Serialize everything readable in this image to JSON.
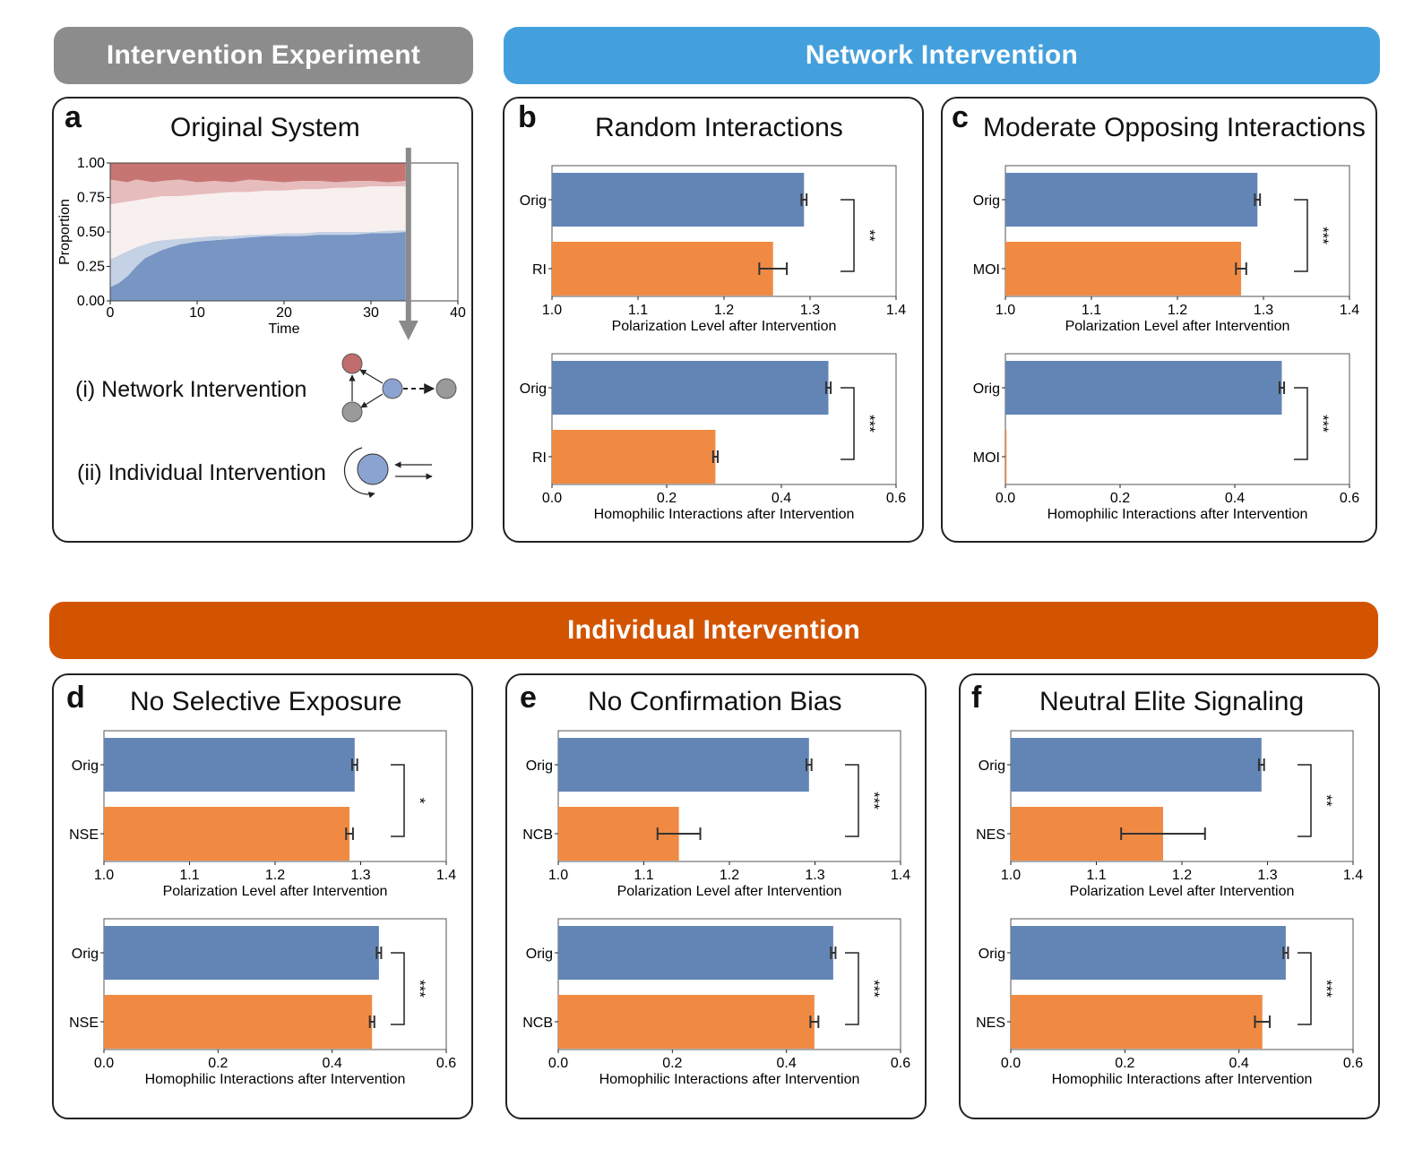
{
  "banners": {
    "experiment": "Intervention Experiment",
    "network": "Network Intervention",
    "individual": "Individual Intervention"
  },
  "colors": {
    "orig_bar": "#6385b5",
    "intervention_bar": "#f08a43",
    "banner_gray": "#8c8c8c",
    "banner_blue": "#44a0dc",
    "banner_orange": "#d35400"
  },
  "panel_a": {
    "label": "a",
    "title": "Original System",
    "network_label": "(i) Network Intervention",
    "individual_label": "(ii) Individual Intervention"
  },
  "panels": {
    "b": {
      "label": "b",
      "title": "Random Interactions"
    },
    "c": {
      "label": "c",
      "title": "Moderate Opposing Interactions"
    },
    "d": {
      "label": "d",
      "title": "No Selective Exposure"
    },
    "e": {
      "label": "e",
      "title": "No Confirmation Bias"
    },
    "f": {
      "label": "f",
      "title": "Neutral Elite Signaling"
    }
  },
  "chart_data": [
    {
      "panel": "a",
      "type": "area",
      "xlabel": "Time",
      "ylabel": "Proportion",
      "xlim": [
        0,
        40
      ],
      "ylim": [
        0,
        1
      ],
      "xticks": [
        0,
        10,
        20,
        30,
        40
      ],
      "yticks": [
        "0.00",
        "0.25",
        "0.50",
        "0.75",
        "1.00"
      ],
      "intervention_time": 34,
      "x": [
        0,
        1,
        2,
        3,
        4,
        5,
        6,
        8,
        10,
        12,
        14,
        16,
        18,
        20,
        22,
        24,
        26,
        28,
        30,
        32,
        34
      ],
      "series": [
        {
          "values": [
            0.1,
            0.13,
            0.18,
            0.25,
            0.31,
            0.34,
            0.37,
            0.41,
            0.43,
            0.44,
            0.45,
            0.46,
            0.47,
            0.47,
            0.47,
            0.48,
            0.48,
            0.48,
            0.49,
            0.49,
            0.5
          ]
        },
        {
          "values": [
            0.3,
            0.33,
            0.36,
            0.39,
            0.41,
            0.43,
            0.44,
            0.45,
            0.46,
            0.47,
            0.47,
            0.48,
            0.48,
            0.49,
            0.49,
            0.5,
            0.5,
            0.5,
            0.5,
            0.51,
            0.51
          ]
        },
        {
          "values": [
            0.7,
            0.71,
            0.72,
            0.73,
            0.74,
            0.75,
            0.76,
            0.76,
            0.77,
            0.78,
            0.79,
            0.79,
            0.8,
            0.8,
            0.81,
            0.81,
            0.82,
            0.82,
            0.83,
            0.83,
            0.83
          ]
        },
        {
          "values": [
            0.88,
            0.87,
            0.86,
            0.88,
            0.87,
            0.86,
            0.87,
            0.88,
            0.86,
            0.87,
            0.86,
            0.88,
            0.87,
            0.86,
            0.87,
            0.87,
            0.86,
            0.87,
            0.87,
            0.86,
            0.87
          ]
        },
        {
          "values": [
            1,
            1,
            1,
            1,
            1,
            1,
            1,
            1,
            1,
            1,
            1,
            1,
            1,
            1,
            1,
            1,
            1,
            1,
            1,
            1,
            1
          ]
        }
      ]
    },
    {
      "panel": "b",
      "plot": "polarization",
      "type": "bar",
      "xlabel": "Polarization Level after Intervention",
      "xlim": [
        1.0,
        1.4
      ],
      "xticks": [
        "1.0",
        "1.1",
        "1.2",
        "1.3",
        "1.4"
      ],
      "categories": [
        "Orig",
        "RI"
      ],
      "values": [
        1.293,
        1.257
      ],
      "errors": [
        0.003,
        0.016
      ],
      "significance": "**"
    },
    {
      "panel": "b",
      "plot": "homophily",
      "type": "bar",
      "xlabel": "Homophilic Interactions after Intervention",
      "xlim": [
        0.0,
        0.6
      ],
      "xticks": [
        "0.0",
        "0.2",
        "0.4",
        "0.6"
      ],
      "categories": [
        "Orig",
        "RI"
      ],
      "values": [
        0.482,
        0.285
      ],
      "errors": [
        0.004,
        0.004
      ],
      "significance": "***"
    },
    {
      "panel": "c",
      "plot": "polarization",
      "type": "bar",
      "xlabel": "Polarization Level after Intervention",
      "xlim": [
        1.0,
        1.4
      ],
      "xticks": [
        "1.0",
        "1.1",
        "1.2",
        "1.3",
        "1.4"
      ],
      "categories": [
        "Orig",
        "MOI"
      ],
      "values": [
        1.293,
        1.274
      ],
      "errors": [
        0.003,
        0.006
      ],
      "significance": "***"
    },
    {
      "panel": "c",
      "plot": "homophily",
      "type": "bar",
      "xlabel": "Homophilic Interactions after Intervention",
      "xlim": [
        0.0,
        0.6
      ],
      "xticks": [
        "0.0",
        "0.2",
        "0.4",
        "0.6"
      ],
      "categories": [
        "Orig",
        "MOI"
      ],
      "values": [
        0.482,
        0.002
      ],
      "errors": [
        0.004,
        0.0
      ],
      "significance": "***"
    },
    {
      "panel": "d",
      "plot": "polarization",
      "type": "bar",
      "xlabel": "Polarization Level after Intervention",
      "xlim": [
        1.0,
        1.4
      ],
      "xticks": [
        "1.0",
        "1.1",
        "1.2",
        "1.3",
        "1.4"
      ],
      "categories": [
        "Orig",
        "NSE"
      ],
      "values": [
        1.293,
        1.287
      ],
      "errors": [
        0.003,
        0.004
      ],
      "significance": "*"
    },
    {
      "panel": "d",
      "plot": "homophily",
      "type": "bar",
      "xlabel": "Homophilic Interactions after Intervention",
      "xlim": [
        0.0,
        0.6
      ],
      "xticks": [
        "0.0",
        "0.2",
        "0.4",
        "0.6"
      ],
      "categories": [
        "Orig",
        "NSE"
      ],
      "values": [
        0.482,
        0.47
      ],
      "errors": [
        0.004,
        0.004
      ],
      "significance": "***"
    },
    {
      "panel": "e",
      "plot": "polarization",
      "type": "bar",
      "xlabel": "Polarization Level after Intervention",
      "xlim": [
        1.0,
        1.4
      ],
      "xticks": [
        "1.0",
        "1.1",
        "1.2",
        "1.3",
        "1.4"
      ],
      "categories": [
        "Orig",
        "NCB"
      ],
      "values": [
        1.293,
        1.141
      ],
      "errors": [
        0.003,
        0.025
      ],
      "significance": "***"
    },
    {
      "panel": "e",
      "plot": "homophily",
      "type": "bar",
      "xlabel": "Homophilic Interactions after Intervention",
      "xlim": [
        0.0,
        0.6
      ],
      "xticks": [
        "0.0",
        "0.2",
        "0.4",
        "0.6"
      ],
      "categories": [
        "Orig",
        "NCB"
      ],
      "values": [
        0.482,
        0.449
      ],
      "errors": [
        0.004,
        0.007
      ],
      "significance": "***"
    },
    {
      "panel": "f",
      "plot": "polarization",
      "type": "bar",
      "xlabel": "Polarization Level after Intervention",
      "xlim": [
        1.0,
        1.4
      ],
      "xticks": [
        "1.0",
        "1.1",
        "1.2",
        "1.3",
        "1.4"
      ],
      "categories": [
        "Orig",
        "NES"
      ],
      "values": [
        1.293,
        1.178
      ],
      "errors": [
        0.003,
        0.049
      ],
      "significance": "**"
    },
    {
      "panel": "f",
      "plot": "homophily",
      "type": "bar",
      "xlabel": "Homophilic Interactions after Intervention",
      "xlim": [
        0.0,
        0.6
      ],
      "xticks": [
        "0.0",
        "0.2",
        "0.4",
        "0.6"
      ],
      "categories": [
        "Orig",
        "NES"
      ],
      "values": [
        0.482,
        0.441
      ],
      "errors": [
        0.004,
        0.013
      ],
      "significance": "***"
    }
  ]
}
